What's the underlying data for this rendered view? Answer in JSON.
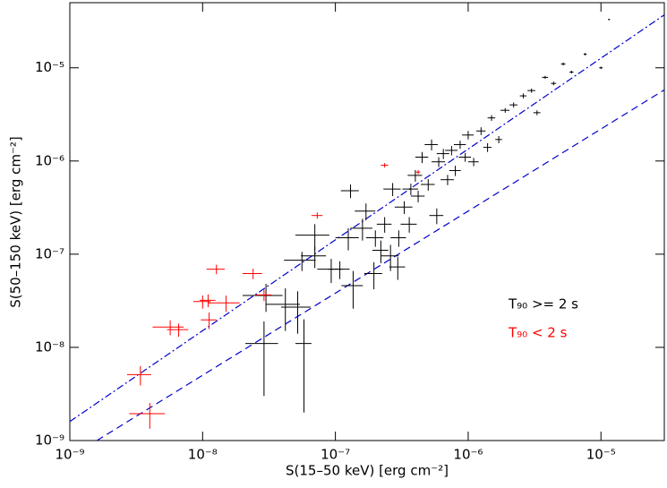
{
  "chart_data": {
    "type": "scatter",
    "x_label": "S(15–50 keV) [erg cm⁻²]",
    "y_label": "S(50–150 keV) [erg cm⁻²]",
    "xlog": true,
    "ylog": true,
    "xlim": [
      1e-09,
      3e-05
    ],
    "ylim": [
      1e-09,
      5e-05
    ],
    "xticks": [
      {
        "value": 1e-09,
        "label": "10⁻⁹"
      },
      {
        "value": 1e-08,
        "label": "10⁻⁸"
      },
      {
        "value": 1e-07,
        "label": "10⁻⁷"
      },
      {
        "value": 1e-06,
        "label": "10⁻⁶"
      },
      {
        "value": 1e-05,
        "label": "10⁻⁵"
      }
    ],
    "yticks": [
      {
        "value": 1e-09,
        "label": "10⁻⁹"
      },
      {
        "value": 1e-08,
        "label": "10⁻⁸"
      },
      {
        "value": 1e-07,
        "label": "10⁻⁷"
      },
      {
        "value": 1e-06,
        "label": "10⁻⁶"
      },
      {
        "value": 1e-05,
        "label": "10⁻⁵"
      }
    ],
    "legend": "center right",
    "series": [
      {
        "name": "T₉₀ >= 2 s",
        "color": "#000000",
        "x": [
          3e-08,
          2.9e-08,
          4.2e-08,
          5.2e-08,
          5.8e-08,
          5.6e-08,
          7e-08,
          7e-08,
          9.3e-08,
          1.08e-07,
          1.25e-07,
          1.36e-07,
          1.3e-07,
          1.6e-07,
          1.7e-07,
          1.95e-07,
          2e-07,
          2.2e-07,
          2.35e-07,
          2.6e-07,
          2.7e-07,
          2.95e-07,
          3e-07,
          3.3e-07,
          3.6e-07,
          3.7e-07,
          4e-07,
          4.2e-07,
          4.5e-07,
          5e-07,
          5.3e-07,
          5.8e-07,
          6e-07,
          6.5e-07,
          7e-07,
          7.5e-07,
          8e-07,
          8.7e-07,
          9.5e-07,
          1e-06,
          1.1e-06,
          1.25e-06,
          1.4e-06,
          1.5e-06,
          1.7e-06,
          1.9e-06,
          2.2e-06,
          2.6e-06,
          3e-06,
          3.3e-06,
          3.8e-06,
          4.4e-06,
          5.2e-06,
          6e-06,
          7.6e-06,
          1e-05,
          1.15e-05
        ],
        "values": [
          3.6e-08,
          1.1e-08,
          2.9e-08,
          2.7e-08,
          1.1e-08,
          8.6e-08,
          1.6e-07,
          9.6e-08,
          6.9e-08,
          6.9e-08,
          1.5e-07,
          4.6e-08,
          4.8e-07,
          1.9e-07,
          2.9e-07,
          6.2e-08,
          1.5e-07,
          1.1e-07,
          2.1e-07,
          9.6e-08,
          5e-07,
          7.3e-08,
          1.5e-07,
          3.2e-07,
          2.1e-07,
          5e-07,
          7e-07,
          4.2e-07,
          1.1e-06,
          5.6e-07,
          1.5e-06,
          2.6e-07,
          9.8e-07,
          1.2e-06,
          6.3e-07,
          1.3e-06,
          7.9e-07,
          1.5e-06,
          1.1e-06,
          1.9e-06,
          9.8e-07,
          2.1e-06,
          1.4e-06,
          2.9e-06,
          1.7e-06,
          3.5e-06,
          4e-06,
          5e-06,
          5.7e-06,
          3.3e-06,
          7.9e-06,
          6.8e-06,
          1.1e-05,
          9e-06,
          1.4e-05,
          1e-05,
          3.3e-05
        ],
        "x_err": [
          1e-08,
          8e-09,
          1.2e-08,
          1.3e-08,
          8e-09,
          1.5e-08,
          2e-08,
          1.5e-08,
          2e-08,
          2e-08,
          2.5e-08,
          2.5e-08,
          2e-08,
          3e-08,
          3e-08,
          3e-08,
          3e-08,
          3e-08,
          3e-08,
          4e-08,
          4e-08,
          4e-08,
          4e-08,
          5e-08,
          5e-08,
          5e-08,
          5e-08,
          5e-08,
          5e-08,
          6e-08,
          6e-08,
          7e-08,
          7e-08,
          7e-08,
          8e-08,
          8e-08,
          8e-08,
          9e-08,
          1e-07,
          1e-07,
          1e-07,
          1e-07,
          1e-07,
          1e-07,
          1e-07,
          1.5e-07,
          1.5e-07,
          1.5e-07,
          2e-07,
          2e-07,
          2e-07,
          2e-07,
          2e-07,
          2e-07,
          2e-07,
          3e-07,
          2e-07
        ],
        "y_err": [
          1.2e-08,
          8e-09,
          1.4e-08,
          1.3e-08,
          9e-09,
          2e-08,
          5e-08,
          2.5e-08,
          2e-08,
          1.5e-08,
          4e-08,
          2e-08,
          8e-08,
          5e-08,
          6e-08,
          2e-08,
          3e-08,
          3e-08,
          4e-08,
          3e-08,
          8e-08,
          2e-08,
          3e-08,
          5e-08,
          4e-08,
          7e-08,
          1e-07,
          6e-08,
          1.5e-07,
          8e-08,
          2e-07,
          5e-08,
          1.2e-07,
          1.5e-07,
          8e-08,
          1.5e-07,
          1e-07,
          1.5e-07,
          1.2e-07,
          2e-07,
          1e-07,
          2e-07,
          1.5e-07,
          2e-07,
          1.5e-07,
          2e-07,
          2.5e-07,
          3e-07,
          3e-07,
          2e-07,
          3e-07,
          3e-07,
          4e-07,
          3e-07,
          4e-07,
          3e-07,
          5e-07
        ]
      },
      {
        "name": "T₉₀ < 2 s",
        "color": "#ff0000",
        "x": [
          3.4e-09,
          4e-09,
          5.7e-09,
          6.6e-09,
          1e-08,
          1.1e-08,
          1.5e-08,
          1.12e-08,
          1.27e-08,
          2.4e-08,
          2.9e-08,
          7.3e-08,
          2.35e-07,
          4.2e-07
        ],
        "values": [
          5.1e-09,
          1.94e-09,
          1.65e-08,
          1.55e-08,
          3.1e-08,
          3.2e-08,
          3e-08,
          1.97e-08,
          6.9e-08,
          6.2e-08,
          3.65e-08,
          2.6e-07,
          9e-07,
          7.6e-07
        ],
        "x_err": [
          7e-10,
          1.2e-09,
          1.5e-09,
          1.2e-09,
          1.5e-09,
          1.5e-09,
          4e-09,
          1.5e-09,
          2e-09,
          4e-09,
          4e-09,
          7e-09,
          1.5e-08,
          1.5e-08
        ],
        "y_err": [
          1.2e-09,
          6e-10,
          3e-09,
          2.5e-09,
          5e-09,
          5e-09,
          6e-09,
          4e-09,
          8e-09,
          8e-09,
          5e-09,
          2e-08,
          5e-08,
          4e-08
        ]
      }
    ],
    "reference_lines": [
      {
        "color": "#0000cc",
        "dash": "dashdot",
        "x": [
          1e-09,
          3e-05
        ],
        "values": [
          1.6e-09,
          3.7e-05
        ]
      },
      {
        "color": "#0000cc",
        "dash": "dashed",
        "x": [
          1.6e-09,
          3e-05
        ],
        "values": [
          1e-09,
          5.8e-06
        ]
      }
    ]
  }
}
